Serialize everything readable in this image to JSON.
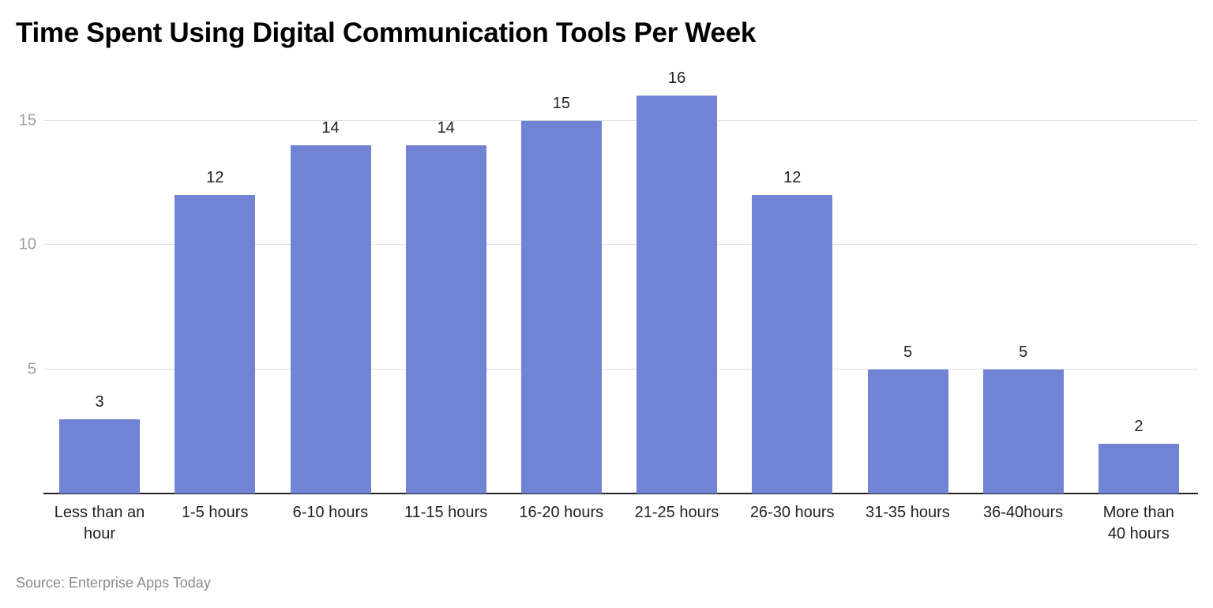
{
  "title": "Time Spent Using Digital Communication Tools Per Week",
  "source": "Source: Enterprise Apps Today",
  "colors": {
    "bar": "#7183d5",
    "grid": "#e0e0e0",
    "tick": "#9e9e9e",
    "text": "#222222"
  },
  "chart_data": {
    "type": "bar",
    "title": "Time Spent Using Digital Communication Tools Per Week",
    "xlabel": "",
    "ylabel": "",
    "categories": [
      "Less than an hour",
      "1-5 hours",
      "6-10 hours",
      "11-15 hours",
      "16-20 hours",
      "21-25 hours",
      "26-30 hours",
      "31-35 hours",
      "36-40hours",
      "More than 40 hours"
    ],
    "values": [
      3,
      12,
      14,
      14,
      15,
      16,
      12,
      5,
      5,
      2
    ],
    "yticks": [
      5,
      10,
      15
    ],
    "ylim": [
      0,
      17
    ],
    "grid": true,
    "data_labels": true,
    "legend": null,
    "source": "Source: Enterprise Apps Today"
  },
  "xlabels_display": [
    [
      "Less than an",
      "hour"
    ],
    [
      "1-5 hours"
    ],
    [
      "6-10 hours"
    ],
    [
      "11-15 hours"
    ],
    [
      "16-20 hours"
    ],
    [
      "21-25 hours"
    ],
    [
      "26-30 hours"
    ],
    [
      "31-35 hours"
    ],
    [
      "36-40hours"
    ],
    [
      "More than",
      "40 hours"
    ]
  ]
}
